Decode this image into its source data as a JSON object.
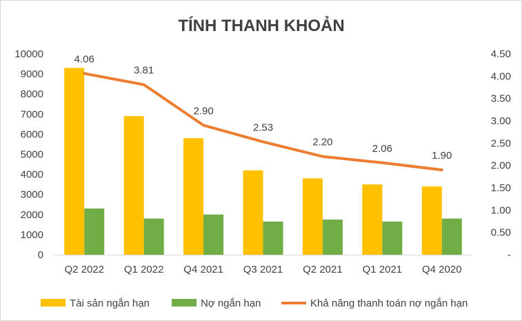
{
  "chart_data": {
    "type": "bar",
    "title": "TÍNH THANH KHOẢN",
    "categories": [
      "Q2 2022",
      "Q1 2022",
      "Q4 2021",
      "Q3 2021",
      "Q2 2021",
      "Q1 2021",
      "Q4 2020"
    ],
    "series": [
      {
        "name": "Tài sản ngắn hạn",
        "type": "bar",
        "axis": "left",
        "color": "#FFC000",
        "values": [
          9300,
          6900,
          5800,
          4200,
          3800,
          3500,
          3400
        ]
      },
      {
        "name": "Nợ ngắn hạn",
        "type": "bar",
        "axis": "left",
        "color": "#70AD47",
        "values": [
          2300,
          1800,
          2000,
          1650,
          1750,
          1650,
          1800
        ]
      },
      {
        "name": "Khả năng thanh toán nợ ngắn hạn",
        "type": "line",
        "axis": "right",
        "color": "#ED7D31",
        "values": [
          4.06,
          3.81,
          2.9,
          2.53,
          2.2,
          2.06,
          1.9
        ],
        "labels": [
          "4.06",
          "3.81",
          "2.90",
          "2.53",
          "2.20",
          "2.06",
          "1.90"
        ]
      }
    ],
    "y_left": {
      "min": 0,
      "max": 10000,
      "ticks": [
        "0",
        "1000",
        "2000",
        "3000",
        "4000",
        "5000",
        "6000",
        "7000",
        "8000",
        "9000",
        "10000"
      ]
    },
    "y_right": {
      "min": 0,
      "max": 4.5,
      "ticks": [
        "-",
        "0.50",
        "1.00",
        "1.50",
        "2.00",
        "2.50",
        "3.00",
        "3.50",
        "4.00",
        "4.50"
      ]
    },
    "grid": false,
    "legend": "bottom"
  }
}
